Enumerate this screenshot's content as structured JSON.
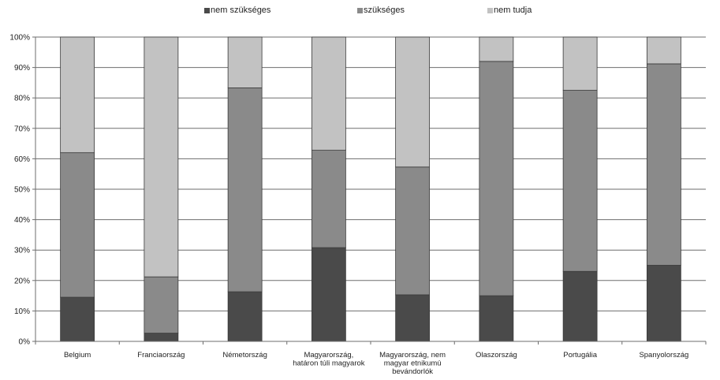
{
  "chart_data": {
    "type": "bar",
    "stacked": true,
    "categories": [
      [
        "Belgium"
      ],
      [
        "Franciaország"
      ],
      [
        "Németország"
      ],
      [
        "Magyarország,",
        "határon túli magyarok"
      ],
      [
        "Magyarország, nem",
        "magyar etnikumú",
        "bevándorlók"
      ],
      [
        "Olaszország"
      ],
      [
        "Portugália"
      ],
      [
        "Spanyolország"
      ]
    ],
    "series": [
      {
        "name": "nem szükséges",
        "color": "#4a4a4a",
        "values": [
          14.5,
          2.7,
          16.3,
          30.8,
          15.3,
          15.0,
          23.0,
          25.0
        ]
      },
      {
        "name": "szükséges",
        "color": "#8a8a8a",
        "values": [
          47.5,
          18.5,
          67.0,
          32.0,
          42.0,
          77.0,
          59.5,
          66.2
        ]
      },
      {
        "name": "nem tudja",
        "color": "#c2c2c2",
        "values": [
          38.0,
          78.8,
          16.7,
          37.2,
          42.7,
          8.0,
          17.5,
          8.8
        ]
      }
    ],
    "y_ticks": [
      "0%",
      "10%",
      "20%",
      "30%",
      "40%",
      "50%",
      "60%",
      "70%",
      "80%",
      "90%",
      "100%"
    ],
    "ylim": [
      0,
      100
    ],
    "grid": true,
    "legend_position": "top"
  }
}
